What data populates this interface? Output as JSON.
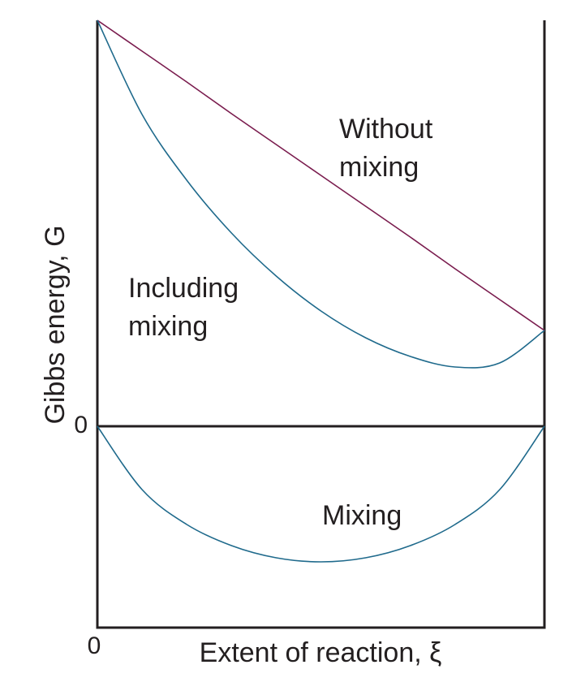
{
  "chart_data": {
    "type": "line",
    "x_label": "Extent of reaction, ξ",
    "y_label": "Gibbs energy, G",
    "x": [
      0,
      0.1,
      0.2,
      0.3,
      0.4,
      0.5,
      0.6,
      0.7,
      0.8,
      0.9,
      1
    ],
    "series": [
      {
        "name": "Without mixing",
        "color": "#7a1c4e",
        "values": [
          5,
          4.62,
          4.24,
          3.85,
          3.47,
          3.09,
          2.71,
          2.33,
          1.94,
          1.56,
          1.18
        ]
      },
      {
        "name": "Including mixing",
        "color": "#1f6a8c",
        "values": [
          5,
          3.84,
          3.03,
          2.38,
          1.85,
          1.42,
          1.09,
          0.86,
          0.73,
          0.78,
          1.18
        ]
      },
      {
        "name": "Mixing",
        "color": "#1f6a8c",
        "values": [
          0,
          -0.78,
          -1.21,
          -1.47,
          -1.62,
          -1.67,
          -1.62,
          -1.47,
          -1.21,
          -0.78,
          0
        ]
      }
    ],
    "xlim": [
      0,
      1
    ],
    "ylim": [
      -2.48,
      5
    ],
    "xticks": [
      0
    ],
    "yticks": [
      0
    ],
    "annotations": [
      "Without",
      "mixing",
      "Including",
      "mixing",
      "Mixing"
    ]
  }
}
